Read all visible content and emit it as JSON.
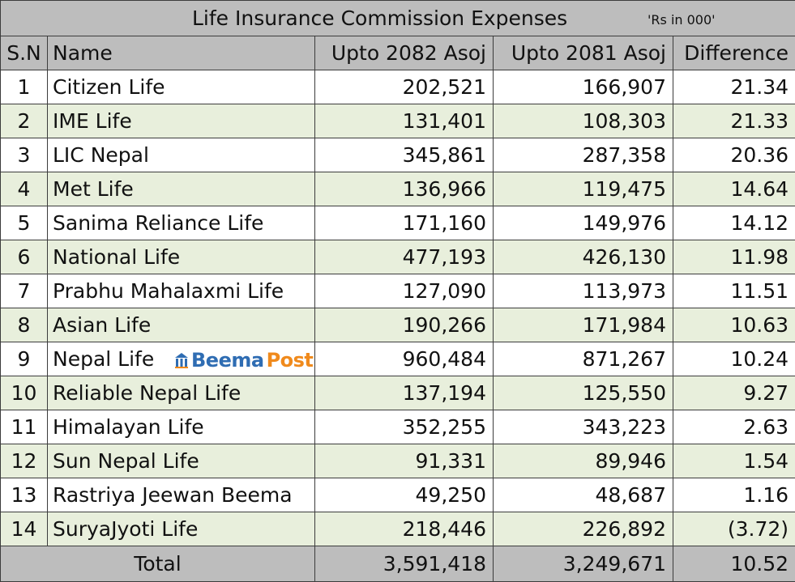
{
  "title": "Life Insurance Commission Expenses",
  "unit_note": "'Rs in 000'",
  "columns": [
    "S.N",
    "Name",
    "Upto 2082 Asoj",
    "Upto 2081 Asoj",
    "Difference"
  ],
  "watermark": {
    "part1": "Beema",
    "part2": "Post"
  },
  "rows": [
    {
      "sn": "1",
      "name": "Citizen Life",
      "y2082": "202,521",
      "y2081": "166,907",
      "diff": "21.34"
    },
    {
      "sn": "2",
      "name": "IME Life",
      "y2082": "131,401",
      "y2081": "108,303",
      "diff": "21.33"
    },
    {
      "sn": "3",
      "name": "LIC Nepal",
      "y2082": "345,861",
      "y2081": "287,358",
      "diff": "20.36"
    },
    {
      "sn": "4",
      "name": "Met Life",
      "y2082": "136,966",
      "y2081": "119,475",
      "diff": "14.64"
    },
    {
      "sn": "5",
      "name": "Sanima Reliance Life",
      "y2082": "171,160",
      "y2081": "149,976",
      "diff": "14.12"
    },
    {
      "sn": "6",
      "name": "National Life",
      "y2082": "477,193",
      "y2081": "426,130",
      "diff": "11.98"
    },
    {
      "sn": "7",
      "name": "Prabhu Mahalaxmi Life",
      "y2082": "127,090",
      "y2081": "113,973",
      "diff": "11.51"
    },
    {
      "sn": "8",
      "name": "Asian Life",
      "y2082": "190,266",
      "y2081": "171,984",
      "diff": "10.63"
    },
    {
      "sn": "9",
      "name": "Nepal Life",
      "y2082": "960,484",
      "y2081": "871,267",
      "diff": "10.24"
    },
    {
      "sn": "10",
      "name": "Reliable Nepal Life",
      "y2082": "137,194",
      "y2081": "125,550",
      "diff": "9.27"
    },
    {
      "sn": "11",
      "name": "Himalayan Life",
      "y2082": "352,255",
      "y2081": "343,223",
      "diff": "2.63"
    },
    {
      "sn": "12",
      "name": "Sun Nepal Life",
      "y2082": "91,331",
      "y2081": "89,946",
      "diff": "1.54"
    },
    {
      "sn": "13",
      "name": "Rastriya Jeewan Beema",
      "y2082": "49,250",
      "y2081": "48,687",
      "diff": "1.16"
    },
    {
      "sn": "14",
      "name": "SuryaJyoti Life",
      "y2082": "218,446",
      "y2081": "226,892",
      "diff": "(3.72)"
    }
  ],
  "total": {
    "label": "Total",
    "y2082": "3,591,418",
    "y2081": "3,249,671",
    "diff": "10.52"
  },
  "colors": {
    "header_bg": "#bdbdbd",
    "alt_row_bg": "#e8efdc",
    "border": "#3c3c3c",
    "logo_blue": "#2f6db3",
    "logo_orange": "#f08a1c"
  },
  "chart_data": {
    "type": "table",
    "title": "Life Insurance Commission Expenses",
    "unit": "Rs in 000",
    "columns": [
      "S.N",
      "Name",
      "Upto 2082 Asoj",
      "Upto 2081 Asoj",
      "Difference"
    ],
    "series": [
      {
        "name": "Upto 2082 Asoj",
        "values": [
          202521,
          131401,
          345861,
          136966,
          171160,
          477193,
          127090,
          190266,
          960484,
          137194,
          352255,
          91331,
          49250,
          218446
        ]
      },
      {
        "name": "Upto 2081 Asoj",
        "values": [
          166907,
          108303,
          287358,
          119475,
          149976,
          426130,
          113973,
          171984,
          871267,
          125550,
          343223,
          89946,
          48687,
          226892
        ]
      },
      {
        "name": "Difference",
        "values": [
          21.34,
          21.33,
          20.36,
          14.64,
          14.12,
          11.98,
          11.51,
          10.63,
          10.24,
          9.27,
          2.63,
          1.54,
          1.16,
          -3.72
        ]
      }
    ],
    "categories": [
      "Citizen Life",
      "IME Life",
      "LIC Nepal",
      "Met Life",
      "Sanima Reliance Life",
      "National Life",
      "Prabhu Mahalaxmi Life",
      "Asian Life",
      "Nepal Life",
      "Reliable Nepal Life",
      "Himalayan Life",
      "Sun Nepal Life",
      "Rastriya Jeewan Beema",
      "SuryaJyoti Life"
    ],
    "totals": {
      "Upto 2082 Asoj": 3591418,
      "Upto 2081 Asoj": 3249671,
      "Difference": 10.52
    }
  }
}
